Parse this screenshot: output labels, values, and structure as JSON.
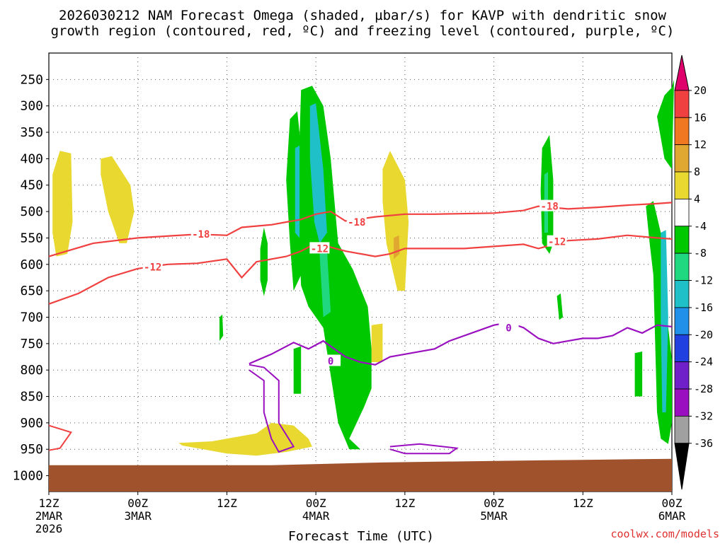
{
  "chart_data": {
    "type": "time-height cross section",
    "title_line1": "2026030212 NAM Forecast Omega (shaded, µbar/s) for KAVP with dendritic snow",
    "title_line2": "growth region (contoured, red, ºC) and freezing level (contoured, purple, ºC)",
    "xlabel": "Forecast Time (UTC)",
    "credit": "coolwx.com/models",
    "y_levels": [
      250,
      300,
      350,
      400,
      450,
      500,
      550,
      600,
      650,
      700,
      750,
      800,
      850,
      900,
      950,
      1000
    ],
    "y_unit": "mb",
    "y_range": [
      200,
      1030
    ],
    "x_range_hours": [
      0,
      84
    ],
    "x_ticks": [
      {
        "hour": 0,
        "line1": "12Z",
        "line2": "2MAR",
        "line3": "2026"
      },
      {
        "hour": 12,
        "line1": "00Z",
        "line2": "3MAR",
        "line3": ""
      },
      {
        "hour": 24,
        "line1": "12Z",
        "line2": "",
        "line3": ""
      },
      {
        "hour": 36,
        "line1": "00Z",
        "line2": "4MAR",
        "line3": ""
      },
      {
        "hour": 48,
        "line1": "12Z",
        "line2": "",
        "line3": ""
      },
      {
        "hour": 60,
        "line1": "00Z",
        "line2": "5MAR",
        "line3": ""
      },
      {
        "hour": 72,
        "line1": "12Z",
        "line2": "",
        "line3": ""
      },
      {
        "hour": 84,
        "line1": "00Z",
        "line2": "6MAR",
        "line3": ""
      }
    ],
    "colorbar": {
      "labels": [
        "20",
        "16",
        "12",
        "8",
        "4",
        "-4",
        "-8",
        "-12",
        "-16",
        "-20",
        "-24",
        "-28",
        "-32",
        "-36"
      ],
      "colors": [
        "#e0006b",
        "#f04040",
        "#f07820",
        "#e0a830",
        "#e8d830",
        "#ffffff",
        "#00c800",
        "#20d880",
        "#20c0c8",
        "#2090e8",
        "#2040e0",
        "#7020c8",
        "#9a10c0",
        "#a0a0a0",
        "#000000"
      ]
    },
    "contour_labels": {
      "dgz_minus18": "-18",
      "dgz_minus12": "-12",
      "freezing": "0"
    },
    "series": [
      {
        "name": "-18C isotherm",
        "color": "#f04040",
        "points": [
          [
            0,
            585
          ],
          [
            6,
            560
          ],
          [
            12,
            550
          ],
          [
            20,
            543
          ],
          [
            24,
            545
          ],
          [
            26,
            530
          ],
          [
            30,
            525
          ],
          [
            32,
            520
          ],
          [
            34,
            515
          ],
          [
            36,
            505
          ],
          [
            38,
            500
          ],
          [
            40,
            518
          ],
          [
            44,
            510
          ],
          [
            48,
            505
          ],
          [
            52,
            505
          ],
          [
            60,
            503
          ],
          [
            64,
            498
          ],
          [
            66,
            490
          ],
          [
            70,
            495
          ],
          [
            74,
            492
          ],
          [
            78,
            488
          ],
          [
            82,
            485
          ],
          [
            84,
            483
          ]
        ]
      },
      {
        "name": "-12C isotherm",
        "color": "#f04040",
        "points": [
          [
            0,
            675
          ],
          [
            4,
            655
          ],
          [
            8,
            625
          ],
          [
            12,
            608
          ],
          [
            16,
            600
          ],
          [
            20,
            598
          ],
          [
            24,
            590
          ],
          [
            26,
            625
          ],
          [
            28,
            595
          ],
          [
            32,
            585
          ],
          [
            34,
            575
          ],
          [
            36,
            560
          ],
          [
            40,
            575
          ],
          [
            44,
            585
          ],
          [
            46,
            580
          ],
          [
            48,
            570
          ],
          [
            56,
            570
          ],
          [
            64,
            562
          ],
          [
            66,
            570
          ],
          [
            70,
            555
          ],
          [
            74,
            552
          ],
          [
            78,
            545
          ],
          [
            82,
            550
          ],
          [
            84,
            552
          ]
        ]
      },
      {
        "name": "0C freezing level",
        "color": "#9a10c0",
        "points": [
          [
            27,
            788
          ],
          [
            30,
            770
          ],
          [
            33,
            748
          ],
          [
            35,
            760
          ],
          [
            37,
            745
          ],
          [
            40,
            775
          ],
          [
            42,
            785
          ],
          [
            44,
            790
          ],
          [
            46,
            775
          ],
          [
            48,
            770
          ],
          [
            52,
            760
          ],
          [
            54,
            745
          ],
          [
            58,
            725
          ],
          [
            60,
            715
          ],
          [
            62,
            710
          ],
          [
            64,
            720
          ],
          [
            66,
            740
          ],
          [
            68,
            750
          ],
          [
            70,
            745
          ],
          [
            72,
            740
          ],
          [
            74,
            740
          ],
          [
            76,
            735
          ],
          [
            78,
            720
          ],
          [
            80,
            730
          ],
          [
            82,
            715
          ],
          [
            84,
            718
          ]
        ]
      }
    ]
  }
}
